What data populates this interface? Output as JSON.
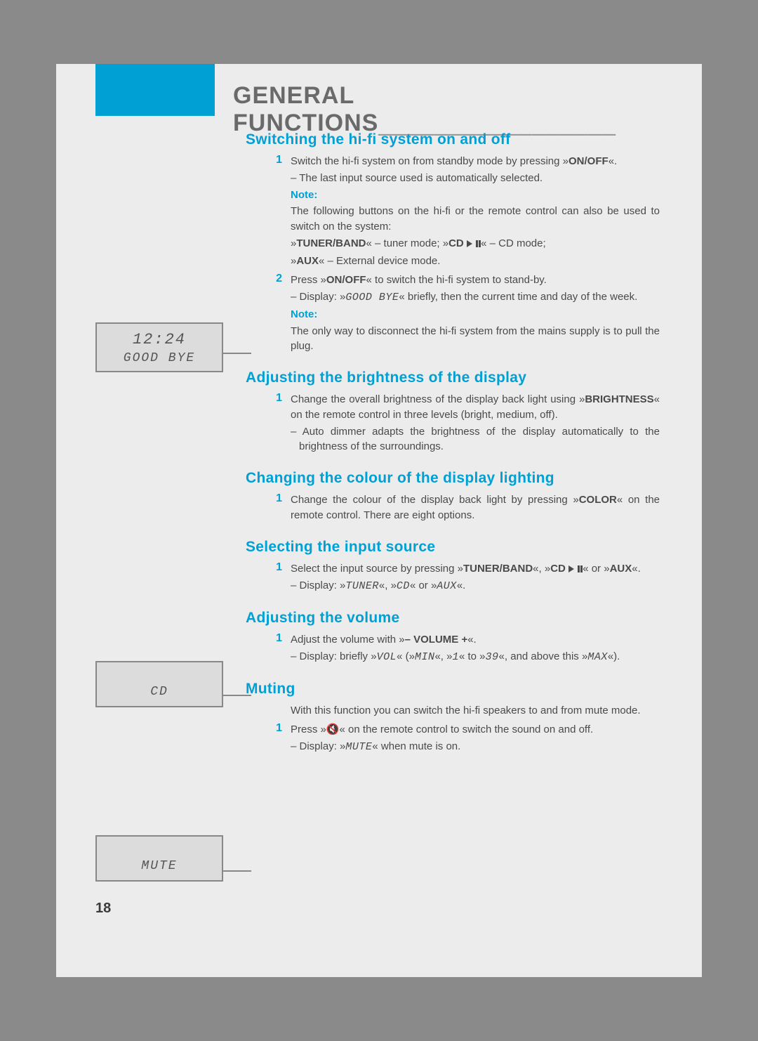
{
  "page_number": "18",
  "title": "GENERAL FUNCTIONS",
  "title_underline": "_________________",
  "colors": {
    "accent": "#00a0d5",
    "page_bg": "#ececec",
    "body_bg": "#8a8a8a",
    "text": "#4a4a4a",
    "box_border": "#888888",
    "box_bg": "#dcdcdc"
  },
  "displays": {
    "box1": {
      "line1": "12:24",
      "line2": "GOOD BYE"
    },
    "box2": {
      "line2": "CD"
    },
    "box3": {
      "line2": "MUTE"
    }
  },
  "sections": {
    "s1": {
      "heading": "Switching the hi-fi system on and off",
      "step1_num": "1",
      "step1_a": "Switch the hi-fi system on from standby mode by pressing »",
      "step1_btn": "ON/OFF",
      "step1_b": "«.",
      "step1_sub": "– The last input source used is automatically selected.",
      "note1_label": "Note:",
      "note1_a": "The following buttons on the hi-fi or the remote control can also be used to switch on the system:",
      "note1_line2_a": "»",
      "note1_tuner": "TUNER/BAND",
      "note1_line2_b": "« – tuner mode; »",
      "note1_cd": "CD ",
      "note1_line2_c": "« – CD mode;",
      "note1_line3_a": "»",
      "note1_aux": "AUX",
      "note1_line3_b": "« – External device mode.",
      "step2_num": "2",
      "step2_a": "Press »",
      "step2_btn": "ON/OFF",
      "step2_b": "« to switch the hi-fi system to stand-by.",
      "step2_sub_a": "– Display: »",
      "step2_seg": "GOOD BYE",
      "step2_sub_b": "« briefly, then the current time and day of the week.",
      "note2_label": "Note:",
      "note2": "The only way to disconnect the hi-fi system from the mains supply is to pull the plug."
    },
    "s2": {
      "heading": "Adjusting the brightness of the display",
      "step1_num": "1",
      "step1_a": "Change the overall brightness of the display back light using »",
      "step1_btn": "BRIGHTNESS",
      "step1_b": "« on the remote control in three levels (bright, medium, off).",
      "step1_sub": "– Auto dimmer adapts the brightness of the display automatically to the brightness of the surroundings."
    },
    "s3": {
      "heading": "Changing the colour of the display lighting",
      "step1_num": "1",
      "step1_a": "Change the colour of the display back light by pressing »",
      "step1_btn": "COLOR",
      "step1_b": "« on the remote control. There are eight options."
    },
    "s4": {
      "heading": "Selecting the input source",
      "step1_num": "1",
      "step1_a": "Select the input source by pressing »",
      "step1_tuner": "TUNER/BAND",
      "step1_b": "«, »",
      "step1_cd": "CD ",
      "step1_c": "« or »",
      "step1_aux": "AUX",
      "step1_d": "«.",
      "step1_sub_a": "– Display: »",
      "step1_seg1": "TUNER",
      "step1_sub_b": "«, »",
      "step1_seg2": "CD",
      "step1_sub_c": "« or »",
      "step1_seg3": "AUX",
      "step1_sub_d": "«."
    },
    "s5": {
      "heading": "Adjusting the volume",
      "step1_num": "1",
      "step1_a": "Adjust the volume with »",
      "step1_btn": "– VOLUME +",
      "step1_b": "«.",
      "step1_sub_a": "– Display: briefly »",
      "step1_seg1": "VOL",
      "step1_sub_b": "« (»",
      "step1_seg2": "MIN",
      "step1_sub_c": "«, »",
      "step1_seg3": "1",
      "step1_sub_d": "« to »",
      "step1_seg4": "39",
      "step1_sub_e": "«, and above this »",
      "step1_seg5": "MAX",
      "step1_sub_f": "«)."
    },
    "s6": {
      "heading": "Muting",
      "intro": "With this function you can switch the hi-fi speakers to and from mute mode.",
      "step1_num": "1",
      "step1_a": "Press »",
      "step1_icon": "🔇",
      "step1_b": "« on the remote control to switch the sound on and off.",
      "step1_sub_a": "– Display: »",
      "step1_seg": "MUTE",
      "step1_sub_b": "« when mute is on."
    }
  }
}
